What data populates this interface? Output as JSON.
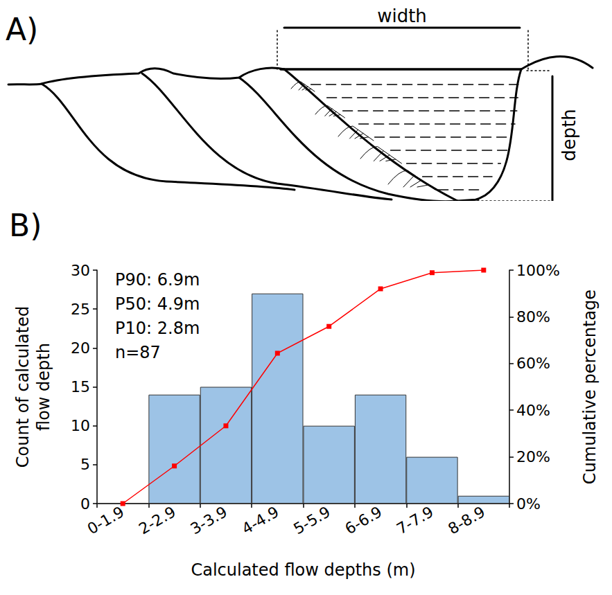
{
  "diagram": {
    "label": "A)",
    "width_label": "width",
    "depth_label": "depth"
  },
  "chart_data": {
    "type": "bar",
    "title": "B)",
    "x_label": "Calculated flow depths (m)",
    "y_label": "Count of calculated flow depth",
    "y2_label": "Cumulative percentage",
    "categories": [
      "0-1.9",
      "2-2.9",
      "3-3.9",
      "4-4.9",
      "5-5.9",
      "6-6.9",
      "7-7.9",
      "8-8.9"
    ],
    "series": [
      {
        "type": "bar",
        "color": "#9dc3e6",
        "values": [
          0,
          14,
          15,
          27,
          10,
          14,
          6,
          1
        ]
      },
      {
        "type": "line",
        "color": "#ff0000",
        "axis": "y2",
        "marker": "square",
        "values": [
          0,
          16.1,
          33.3,
          64.4,
          75.9,
          92.0,
          98.9,
          100
        ]
      }
    ],
    "annotations": [
      "P90: 6.9m",
      "P50: 4.9m",
      "P10: 2.8m",
      "n=87"
    ],
    "ylim": [
      0,
      30
    ],
    "yticks": [
      0,
      5,
      10,
      15,
      20,
      25,
      30
    ],
    "y2lim": [
      0,
      100
    ],
    "y2ticks": [
      {
        "value": 0,
        "label": "0%"
      },
      {
        "value": 20,
        "label": "20%"
      },
      {
        "value": 40,
        "label": "40%"
      },
      {
        "value": 60,
        "label": "60%"
      },
      {
        "value": 80,
        "label": "80%"
      },
      {
        "value": 100,
        "label": "100%"
      }
    ],
    "grid": false
  }
}
